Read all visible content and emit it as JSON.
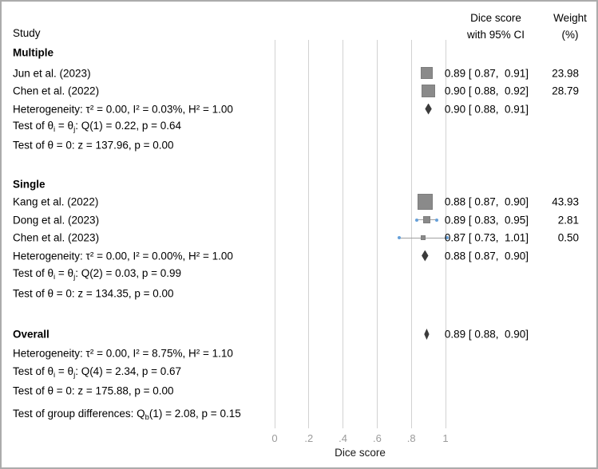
{
  "figure": {
    "study_col_header": "Study",
    "ci_col_header": [
      "Dice score",
      "with 95% CI"
    ],
    "weight_col_header": [
      "Weight",
      "(%)"
    ]
  },
  "chart_data": {
    "type": "forest",
    "xlabel": "Dice score",
    "xlim": [
      0,
      1
    ],
    "xtick_labels": [
      "0",
      ".2",
      ".4",
      ".6",
      ".8",
      "1"
    ],
    "xtick_values": [
      0,
      0.2,
      0.4,
      0.6,
      0.8,
      1
    ],
    "grid": "vertical-gridlines",
    "marker_color": "#8a8a8a",
    "diamond_color": "#3b3b3b",
    "cap_color": "#66a0d9",
    "groups": [
      {
        "name": "Multiple",
        "studies": [
          {
            "label": "Jun et al. (2023)",
            "est": 0.89,
            "lo": 0.87,
            "hi": 0.91,
            "ci_text": "0.89 [ 0.87,  0.91]",
            "weight": 23.98,
            "weight_text": "23.98"
          },
          {
            "label": "Chen et al. (2022)",
            "est": 0.9,
            "lo": 0.88,
            "hi": 0.92,
            "ci_text": "0.90 [ 0.88,  0.92]",
            "weight": 28.79,
            "weight_text": "28.79"
          }
        ],
        "summary": {
          "est": 0.9,
          "lo": 0.88,
          "hi": 0.91,
          "ci_text": "0.90 [ 0.88,  0.91]",
          "label_parts": [
            [
              "t",
              "Heterogeneity: τ² = 0.00, I² = 0.03%, H² = 1.00"
            ]
          ]
        },
        "stats": [
          [
            [
              "t",
              "Test of θ"
            ],
            [
              "s",
              "i"
            ],
            [
              "t",
              " = θ"
            ],
            [
              "s",
              "j"
            ],
            [
              "t",
              ": Q(1) = 0.22, p = 0.64"
            ]
          ],
          [
            [
              "t",
              "Test of θ = 0: z = 137.96, p = 0.00"
            ]
          ]
        ]
      },
      {
        "name": "Single",
        "studies": [
          {
            "label": "Kang et al. (2022)",
            "est": 0.88,
            "lo": 0.87,
            "hi": 0.9,
            "ci_text": "0.88 [ 0.87,  0.90]",
            "weight": 43.93,
            "weight_text": "43.93"
          },
          {
            "label": "Dong et al. (2023)",
            "est": 0.89,
            "lo": 0.83,
            "hi": 0.95,
            "ci_text": "0.89 [ 0.83,  0.95]",
            "weight": 2.81,
            "weight_text": "2.81"
          },
          {
            "label": "Chen et al. (2023)",
            "est": 0.87,
            "lo": 0.73,
            "hi": 1.01,
            "ci_text": "0.87 [ 0.73,  1.01]",
            "weight": 0.5,
            "weight_text": "0.50"
          }
        ],
        "summary": {
          "est": 0.88,
          "lo": 0.87,
          "hi": 0.9,
          "ci_text": "0.88 [ 0.87,  0.90]",
          "label_parts": [
            [
              "t",
              "Heterogeneity: τ² = 0.00, I² = 0.00%, H² = 1.00"
            ]
          ]
        },
        "stats": [
          [
            [
              "t",
              "Test of θ"
            ],
            [
              "s",
              "i"
            ],
            [
              "t",
              " = θ"
            ],
            [
              "s",
              "j"
            ],
            [
              "t",
              ": Q(2) = 0.03, p = 0.99"
            ]
          ],
          [
            [
              "t",
              "Test of θ = 0: z = 134.35, p = 0.00"
            ]
          ]
        ]
      }
    ],
    "overall": {
      "label": "Overall",
      "est": 0.89,
      "lo": 0.88,
      "hi": 0.9,
      "ci_text": "0.89 [ 0.88,  0.90]",
      "stats": [
        [
          [
            "t",
            "Heterogeneity: τ² = 0.00, I² = 8.75%, H² = 1.10"
          ]
        ],
        [
          [
            "t",
            "Test of θ"
          ],
          [
            "s",
            "i"
          ],
          [
            "t",
            " = θ"
          ],
          [
            "s",
            "j"
          ],
          [
            "t",
            ": Q(4) = 2.34, p = 0.67"
          ]
        ],
        [
          [
            "t",
            "Test of θ = 0: z = 175.88, p = 0.00"
          ]
        ]
      ]
    },
    "group_diff": [
      [
        "t",
        "Test of group differences: Q"
      ],
      [
        "s",
        "b"
      ],
      [
        "t",
        "(1) = 2.08, p = 0.15"
      ]
    ]
  }
}
